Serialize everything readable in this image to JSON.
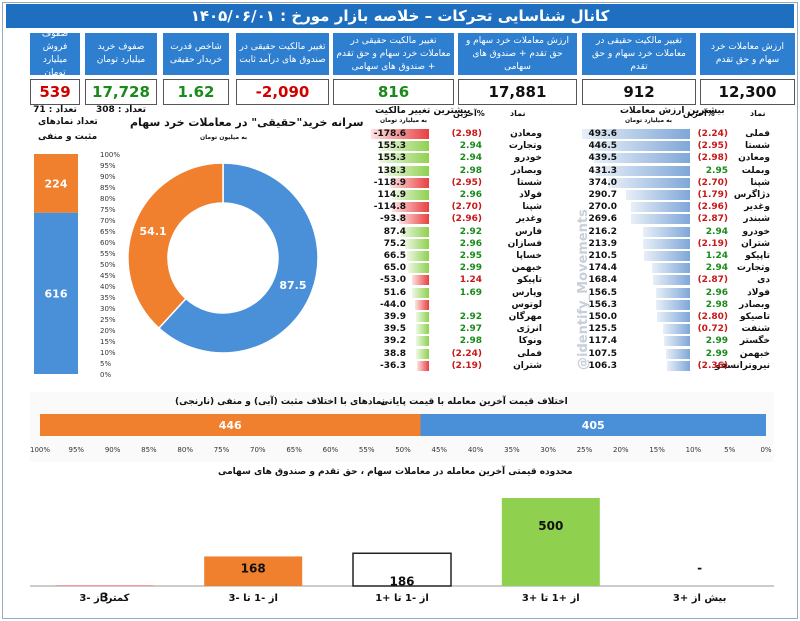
{
  "title": "کانال شناسایی تحرکات  –  خلاصه بازار مورخ : ۱۴۰۵/۰۶/۰۱",
  "kpis": [
    {
      "head": "ارزش معاملات خرد سهام و حق تقدم",
      "value": "12,300",
      "color": "#111111"
    },
    {
      "head": "تغییر مالکیت حقیقی در معاملات خرد سهام و حق تقدم",
      "value": "912",
      "color": "#111111"
    },
    {
      "head": "ارزش معاملات خرد سهام و حق تقدم + صندوق های سهامی",
      "value": "17,881",
      "color": "#111111"
    },
    {
      "head": "تغییر مالکیت حقیقی در معاملات خرد سهام و حق تقدم + صندوق های سهامی",
      "value": "816",
      "color": "#1a8a1a"
    },
    {
      "head": "تغییر مالکیت حقیقی در صندوق های درآمد ثابت",
      "value": "-2,090",
      "color": "#d00000"
    },
    {
      "head": "شاخص قدرت خریدار حقیقی",
      "value": "1.62",
      "color": "#1a8a1a"
    },
    {
      "head": "صفوف خرید میلیارد تومان",
      "value": "17,728",
      "color": "#1a8a1a",
      "sub": "تعداد : 308"
    },
    {
      "head": "صفوف فروش میلیارد تومان",
      "value": "539",
      "color": "#d00000",
      "sub": "تعداد : 71"
    }
  ],
  "left_table": {
    "title": "بیشترین ارزش معاملات",
    "subtitle": "به میلیارد تومان",
    "col_symbol": "نماد",
    "col_pct": "%آخرین",
    "rows": [
      {
        "symbol": "فملی",
        "pct": "(2.24)",
        "value": "493.6",
        "neg": true
      },
      {
        "symbol": "شستا",
        "pct": "(2.95)",
        "value": "446.5",
        "neg": true
      },
      {
        "symbol": "ومعادن",
        "pct": "(2.98)",
        "value": "439.5",
        "neg": true
      },
      {
        "symbol": "وبملت",
        "pct": "2.95",
        "value": "431.3",
        "neg": false
      },
      {
        "symbol": "شپنا",
        "pct": "(2.70)",
        "value": "374.0",
        "neg": true
      },
      {
        "symbol": "دژاگرس",
        "pct": "(1.79)",
        "value": "290.7",
        "neg": true
      },
      {
        "symbol": "وغدیر",
        "pct": "(2.96)",
        "value": "270.0",
        "neg": true
      },
      {
        "symbol": "شبندر",
        "pct": "(2.87)",
        "value": "269.6",
        "neg": true
      },
      {
        "symbol": "خودرو",
        "pct": "2.94",
        "value": "216.2",
        "neg": false
      },
      {
        "symbol": "شتران",
        "pct": "(2.19)",
        "value": "213.9",
        "neg": true
      },
      {
        "symbol": "تاپیکو",
        "pct": "1.24",
        "value": "210.5",
        "neg": false
      },
      {
        "symbol": "وتجارت",
        "pct": "2.94",
        "value": "174.4",
        "neg": false
      },
      {
        "symbol": "دی",
        "pct": "(2.87)",
        "value": "168.4",
        "neg": true
      },
      {
        "symbol": "فولاد",
        "pct": "2.96",
        "value": "156.5",
        "neg": false
      },
      {
        "symbol": "وبصادر",
        "pct": "2.98",
        "value": "156.3",
        "neg": false
      },
      {
        "symbol": "تاصیکو",
        "pct": "(2.80)",
        "value": "150.0",
        "neg": true
      },
      {
        "symbol": "شنفت",
        "pct": "(0.72)",
        "value": "125.5",
        "neg": true
      },
      {
        "symbol": "خگستر",
        "pct": "2.99",
        "value": "117.4",
        "neg": false
      },
      {
        "symbol": "خبهمن",
        "pct": "2.99",
        "value": "107.5",
        "neg": false
      },
      {
        "symbol": "نیروترانسفو",
        "pct": "(2.36)",
        "value": "106.3",
        "neg": true
      }
    ]
  },
  "right_table": {
    "title": "بیشترین تغییر مالکیت",
    "subtitle": "به میلیارد تومان",
    "col_symbol": "نماد",
    "col_pct": "%آخرین",
    "rows": [
      {
        "symbol": "ومعادن",
        "pct": "(2.98)",
        "value": "-178.6",
        "neg": true
      },
      {
        "symbol": "وتجارت",
        "pct": "2.94",
        "value": "155.3",
        "neg": false
      },
      {
        "symbol": "خودرو",
        "pct": "2.94",
        "value": "155.3",
        "neg": false
      },
      {
        "symbol": "وبصادر",
        "pct": "2.98",
        "value": "138.3",
        "neg": false
      },
      {
        "symbol": "شستا",
        "pct": "(2.95)",
        "value": "-118.9",
        "neg": true
      },
      {
        "symbol": "فولاد",
        "pct": "2.96",
        "value": "114.9",
        "neg": false
      },
      {
        "symbol": "شپنا",
        "pct": "(2.70)",
        "value": "-114.8",
        "neg": true
      },
      {
        "symbol": "وغدیر",
        "pct": "(2.96)",
        "value": "-93.8",
        "neg": true
      },
      {
        "symbol": "فارس",
        "pct": "2.92",
        "value": "87.4",
        "neg": false
      },
      {
        "symbol": "فسازان",
        "pct": "2.96",
        "value": "75.2",
        "neg": false
      },
      {
        "symbol": "خساپا",
        "pct": "2.95",
        "value": "66.5",
        "neg": false
      },
      {
        "symbol": "خبهمن",
        "pct": "2.99",
        "value": "65.0",
        "neg": false
      },
      {
        "symbol": "تاپیکو",
        "pct": "1.24",
        "value": "-53.0",
        "neg": true
      },
      {
        "symbol": "وپارس",
        "pct": "1.69",
        "value": "51.6",
        "neg": false
      },
      {
        "symbol": "لوتوس",
        "pct": "",
        "value": "-44.0",
        "neg": true
      },
      {
        "symbol": "مهرگان",
        "pct": "2.92",
        "value": "39.9",
        "neg": false
      },
      {
        "symbol": "انرژی",
        "pct": "2.97",
        "value": "39.5",
        "neg": false
      },
      {
        "symbol": "ونوکا",
        "pct": "2.98",
        "value": "39.2",
        "neg": false
      },
      {
        "symbol": "فملی",
        "pct": "(2.24)",
        "value": "38.8",
        "neg": true
      },
      {
        "symbol": "شتران",
        "pct": "(2.19)",
        "value": "-36.3",
        "neg": true
      }
    ]
  },
  "watermark": "@identify_Movements",
  "colors": {
    "blue": "#4a90d9",
    "orange": "#f07f2e",
    "green": "#8fd14f",
    "red": "#e84040",
    "header": "#1f6fc1"
  },
  "chart_data": [
    {
      "type": "pie",
      "title": "سرانه خرید\"حقیقی\" در معاملات خرد سهام",
      "subtitle": "به میلیون تومان",
      "slices": [
        {
          "name": "خرید",
          "value": 87.5,
          "color": "#4a90d9"
        },
        {
          "name": "فروش",
          "value": 54.1,
          "color": "#f07f2e"
        }
      ],
      "labels": [
        "87.5",
        "54.1"
      ]
    },
    {
      "type": "bar",
      "title": "تعداد نمادهای",
      "subtitle": "مثبت و منفی",
      "stacked": true,
      "series": [
        {
          "name": "مثبت",
          "value": 616,
          "color": "#4a90d9"
        },
        {
          "name": "منفی",
          "value": 224,
          "color": "#f07f2e"
        }
      ],
      "yticks": [
        "100%",
        "95%",
        "90%",
        "85%",
        "80%",
        "75%",
        "70%",
        "65%",
        "60%",
        "55%",
        "50%",
        "45%",
        "40%",
        "35%",
        "30%",
        "25%",
        "20%",
        "15%",
        "10%",
        "5%",
        "0%"
      ]
    },
    {
      "type": "bar",
      "title": "اختلاف قیمت آخرین معامله با قیمت پایانی",
      "subtitle": "نمادهای با اختلاف مثبت (آبی) و منفی (نارنجی)",
      "orientation": "horizontal",
      "stacked": true,
      "series": [
        {
          "name": "منفی",
          "value": 446,
          "color": "#f07f2e"
        },
        {
          "name": "مثبت",
          "value": 405,
          "color": "#4a90d9"
        }
      ],
      "xticks": [
        "100%",
        "95%",
        "90%",
        "85%",
        "80%",
        "75%",
        "70%",
        "65%",
        "60%",
        "55%",
        "50%",
        "45%",
        "40%",
        "35%",
        "30%",
        "25%",
        "20%",
        "15%",
        "10%",
        "5%",
        "0%"
      ]
    },
    {
      "type": "bar",
      "title": "محدوده قیمتی آخرین معامله در  معاملات سهام ، حق تقدم و صندوق های سهامی",
      "categories": [
        "بیش از +3",
        "از +1 تا +3",
        "از -1 تا +1",
        "از -1 تا -3",
        "کمتر از -3"
      ],
      "values": [
        0,
        500,
        186,
        168,
        3
      ],
      "value_labels": [
        "-",
        "500",
        "186",
        "168",
        "3"
      ],
      "bar_colors": [
        "#8fd14f",
        "#8fd14f",
        "#ffffff",
        "#f07f2e",
        "#e84040"
      ]
    }
  ]
}
